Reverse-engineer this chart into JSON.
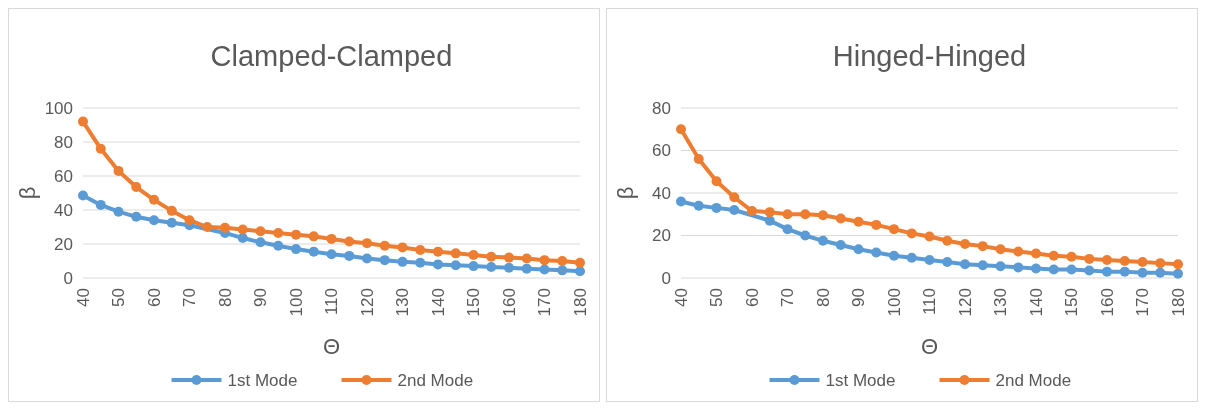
{
  "chart_data": [
    {
      "type": "line",
      "title": "Clamped-Clamped",
      "xlabel": "Θ",
      "ylabel": "β",
      "x": [
        40,
        45,
        50,
        55,
        60,
        65,
        70,
        75,
        80,
        85,
        90,
        95,
        100,
        105,
        110,
        115,
        120,
        125,
        130,
        135,
        140,
        145,
        150,
        155,
        160,
        165,
        170,
        175,
        180
      ],
      "series": [
        {
          "name": "1st Mode",
          "color": "#5b9bd5",
          "values": [
            48.5,
            43,
            39,
            36,
            34,
            32.5,
            31,
            null,
            26.5,
            23.5,
            21,
            19,
            17,
            15.5,
            14,
            13,
            11.5,
            10.5,
            9.5,
            9,
            8,
            7.5,
            7,
            6.5,
            6,
            5.5,
            5,
            4.5,
            4
          ]
        },
        {
          "name": "2nd Mode",
          "color": "#ed7d31",
          "values": [
            92,
            76,
            63,
            53.5,
            46,
            39.5,
            34,
            30,
            29.5,
            28.5,
            27.5,
            26.5,
            25.5,
            24.5,
            23,
            21.5,
            20.5,
            19,
            18,
            16.5,
            15.5,
            14.5,
            13.5,
            12.5,
            12,
            11.5,
            10.5,
            10,
            9
          ]
        }
      ],
      "xlim": [
        40,
        180
      ],
      "xticks": [
        40,
        50,
        60,
        70,
        80,
        90,
        100,
        110,
        120,
        130,
        140,
        150,
        160,
        170,
        180
      ],
      "ylim": [
        0,
        100
      ],
      "yticks": [
        0,
        20,
        40,
        60,
        80,
        100
      ],
      "grid": "y",
      "legend": "bottom",
      "marker": "circle",
      "line_style": "solid"
    },
    {
      "type": "line",
      "title": "Hinged-Hinged",
      "xlabel": "Θ",
      "ylabel": "β",
      "x": [
        40,
        45,
        50,
        55,
        60,
        65,
        70,
        75,
        80,
        85,
        90,
        95,
        100,
        105,
        110,
        115,
        120,
        125,
        130,
        135,
        140,
        145,
        150,
        155,
        160,
        165,
        170,
        175,
        180
      ],
      "series": [
        {
          "name": "1st Mode",
          "color": "#5b9bd5",
          "values": [
            36,
            34,
            33,
            32,
            null,
            27,
            23,
            20,
            17.5,
            15.5,
            13.5,
            12,
            10.5,
            9.5,
            8.5,
            7.5,
            6.5,
            6,
            5.5,
            5,
            4.5,
            4,
            4,
            3.5,
            3,
            3,
            2.5,
            2.5,
            2
          ]
        },
        {
          "name": "2nd Mode",
          "color": "#ed7d31",
          "values": [
            70,
            56,
            45.5,
            38,
            31.5,
            31,
            30,
            30,
            29.5,
            28,
            26.5,
            25,
            23,
            21,
            19.5,
            17.5,
            16,
            15,
            13.5,
            12.5,
            11.5,
            10.5,
            10,
            9,
            8.5,
            8,
            7.5,
            7,
            6.5
          ]
        }
      ],
      "xlim": [
        40,
        180
      ],
      "xticks": [
        40,
        50,
        60,
        70,
        80,
        90,
        100,
        110,
        120,
        130,
        140,
        150,
        160,
        170,
        180
      ],
      "ylim": [
        0,
        80
      ],
      "yticks": [
        0,
        20,
        40,
        60,
        80
      ],
      "grid": "y",
      "legend": "bottom",
      "marker": "circle",
      "line_style": "solid"
    }
  ]
}
